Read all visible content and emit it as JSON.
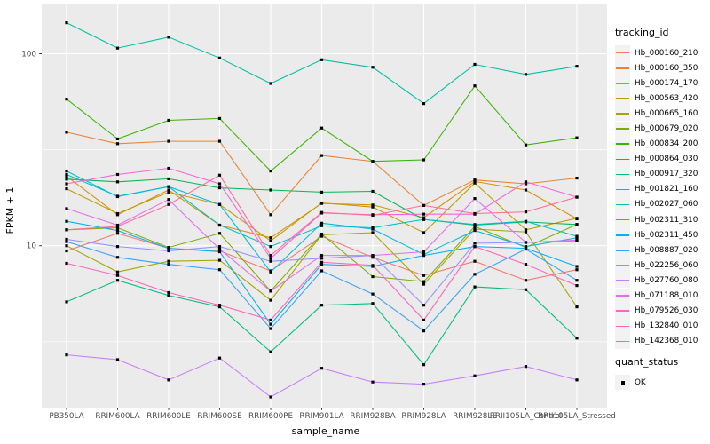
{
  "figure": {
    "panel_bg": "#EBEBEB",
    "grid_color": "#FFFFFF",
    "tick_color": "#333333",
    "tick_text_color": "#4D4D4D",
    "point_color": "#000000",
    "legend_key_bg": "#F2F2F2"
  },
  "chart_data": {
    "type": "line",
    "xlabel": "sample_name",
    "ylabel": "FPKM + 1",
    "y_scale": "log10",
    "grid": true,
    "legend_position": "right",
    "y_ticks": [
      {
        "label": "100",
        "value": 100
      },
      {
        "label": "10",
        "value": 10
      }
    ],
    "y_minor_values": [
      31.62,
      3.162
    ],
    "ylim": [
      1.43,
      180
    ],
    "marker": "black-square",
    "categories": [
      "PB350LA",
      "RRIM600LA",
      "RRIM600LE",
      "RRIM600SE",
      "RRIM600PE",
      "RRIM901LA",
      "RRIM928BA",
      "RRIM928LA",
      "RRIM928LE",
      "RRII105LA_Control",
      "RRII105LA_Stressed"
    ],
    "legend": {
      "title": "tracking_id"
    },
    "quant_status": {
      "title": "quant_status",
      "items": [
        {
          "label": "OK",
          "marker": "black-square"
        }
      ]
    },
    "series": [
      {
        "name": "Hb_000160_210",
        "color": "#F8766D",
        "values": [
          9.4,
          11.6,
          9.7,
          9.4,
          7.4,
          11.2,
          8.7,
          7.0,
          8.3,
          6.6,
          7.5
        ]
      },
      {
        "name": "Hb_000160_350",
        "color": "#EA8331",
        "values": [
          39,
          34,
          35,
          35,
          14.5,
          29.5,
          27.5,
          16.2,
          22,
          21,
          22.5
        ]
      },
      {
        "name": "Hb_000174_170",
        "color": "#D89000",
        "values": [
          23.0,
          14.5,
          19.5,
          12.8,
          11.0,
          16.6,
          16.3,
          14.0,
          21.6,
          19.5,
          13.8
        ]
      },
      {
        "name": "Hb_000563_420",
        "color": "#C09B00",
        "values": [
          19.8,
          14.7,
          19.0,
          16.4,
          10.6,
          16.7,
          15.9,
          11.7,
          21.2,
          12.1,
          13.9
        ]
      },
      {
        "name": "Hb_000665_160",
        "color": "#A3A500",
        "values": [
          10.0,
          7.3,
          8.3,
          8.4,
          5.2,
          11.4,
          11.7,
          6.3,
          12.2,
          11.8,
          4.8
        ]
      },
      {
        "name": "Hb_000679_020",
        "color": "#7CAE00",
        "values": [
          12.1,
          12.4,
          9.8,
          11.6,
          5.8,
          11.5,
          6.9,
          6.5,
          12.6,
          9.8,
          12.9
        ]
      },
      {
        "name": "Hb_000834_200",
        "color": "#39B600",
        "values": [
          58,
          36,
          45,
          46,
          24.5,
          41,
          27.5,
          28,
          68,
          33.5,
          36.5
        ]
      },
      {
        "name": "Hb_000864_030",
        "color": "#00BB4E",
        "values": [
          22.2,
          21.5,
          22.3,
          20.0,
          19.5,
          19.0,
          19.2,
          13.7,
          12.8,
          13.3,
          12.9
        ]
      },
      {
        "name": "Hb_000917_320",
        "color": "#00BF7D",
        "values": [
          5.1,
          6.6,
          5.5,
          4.8,
          2.8,
          4.9,
          5.0,
          2.4,
          6.1,
          5.9,
          3.3
        ]
      },
      {
        "name": "Hb_001821_160",
        "color": "#00C1A3",
        "values": [
          145,
          107,
          122,
          95,
          70,
          93,
          85,
          55,
          88,
          78,
          86
        ]
      },
      {
        "name": "Hb_002027_060",
        "color": "#00BFC4",
        "values": [
          23.5,
          18.1,
          20.3,
          12.8,
          9.9,
          12.7,
          12.4,
          13.7,
          12.9,
          13.4,
          11.2
        ]
      },
      {
        "name": "Hb_002311_310",
        "color": "#00BAE0",
        "values": [
          24.5,
          18.0,
          20.3,
          16.4,
          7.3,
          13.1,
          12.2,
          9.0,
          12.0,
          9.9,
          11.0
        ]
      },
      {
        "name": "Hb_002311_450",
        "color": "#00B0F6",
        "values": [
          13.4,
          12.0,
          9.7,
          9.3,
          3.9,
          8.0,
          7.8,
          8.9,
          9.9,
          9.7,
          7.8
        ]
      },
      {
        "name": "Hb_008887_020",
        "color": "#35A2FF",
        "values": [
          10.5,
          8.7,
          8.0,
          7.5,
          3.7,
          7.4,
          5.6,
          3.6,
          7.1,
          9.6,
          6.6
        ]
      },
      {
        "name": "Hb_022256_060",
        "color": "#9590FF",
        "values": [
          10.8,
          9.9,
          9.4,
          9.9,
          8.3,
          8.6,
          8.9,
          4.9,
          10.3,
          10.4,
          10.6
        ]
      },
      {
        "name": "Hb_027760_080",
        "color": "#C77CFF",
        "values": [
          2.7,
          2.55,
          2.0,
          2.6,
          1.63,
          2.3,
          1.95,
          1.9,
          2.1,
          2.35,
          2.0
        ]
      },
      {
        "name": "Hb_071188_010",
        "color": "#E76BF3",
        "values": [
          15.6,
          12.8,
          17.4,
          9.6,
          5.8,
          8.9,
          8.9,
          9.3,
          17.6,
          10.4,
          10.7
        ]
      },
      {
        "name": "Hb_079526_030",
        "color": "#FA62DB",
        "values": [
          21.0,
          23.5,
          25.3,
          21.0,
          8.6,
          14.8,
          14.5,
          14.6,
          14.6,
          21.5,
          17.9
        ]
      },
      {
        "name": "Hb_132840_010",
        "color": "#FF62BC",
        "values": [
          8.1,
          7.0,
          5.7,
          4.9,
          4.1,
          8.2,
          7.9,
          4.1,
          9.9,
          8.0,
          6.2
        ]
      },
      {
        "name": "Hb_142368_010",
        "color": "#FF6A98",
        "values": [
          12.1,
          12.6,
          16.4,
          23.3,
          8.9,
          14.9,
          14.4,
          16.2,
          14.7,
          15.0,
          17.9
        ]
      }
    ]
  }
}
